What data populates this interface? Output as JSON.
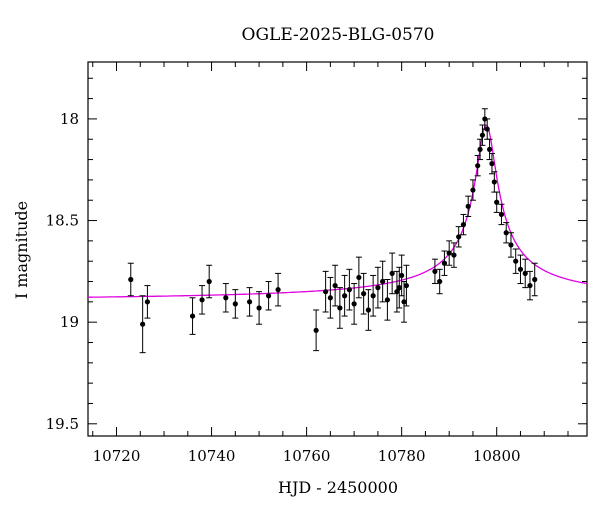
{
  "chart_data": {
    "type": "scatter",
    "title": "OGLE-2025-BLG-0570",
    "xlabel": "HJD - 2450000",
    "ylabel": "I magnitude",
    "xlim": [
      10714,
      10819
    ],
    "ylim": [
      19.56,
      17.72
    ],
    "y_inverted": true,
    "xticks": [
      10720,
      10740,
      10760,
      10780,
      10800
    ],
    "yticks": [
      18,
      18.5,
      19,
      19.5
    ],
    "ytick_labels": [
      "18",
      "18.5",
      "19",
      "19.5"
    ],
    "grid": false,
    "colors": {
      "points": "#000000",
      "model": "#e000e0"
    },
    "series": [
      {
        "type": "errorbar",
        "x": [
          10723,
          10725.5,
          10726.5,
          10736,
          10738,
          10739.5,
          10743,
          10745,
          10748,
          10750,
          10752,
          10754,
          10762,
          10764,
          10765,
          10766,
          10767,
          10768,
          10769,
          10770,
          10771,
          10772,
          10773,
          10774,
          10775,
          10776,
          10777,
          10778,
          10779,
          10779.5,
          10780,
          10780.5,
          10781,
          10787,
          10788,
          10789,
          10790,
          10791,
          10792,
          10793,
          10794,
          10795,
          10796,
          10796.5,
          10797,
          10797.5,
          10798,
          10798.5,
          10799,
          10799.5,
          10800,
          10801,
          10802,
          10803,
          10804,
          10805,
          10806,
          10807,
          10808
        ],
        "y": [
          18.79,
          19.01,
          18.9,
          18.97,
          18.89,
          18.8,
          18.88,
          18.91,
          18.9,
          18.93,
          18.87,
          18.84,
          19.04,
          18.85,
          18.88,
          18.82,
          18.93,
          18.87,
          18.84,
          18.91,
          18.78,
          18.86,
          18.94,
          18.87,
          18.83,
          18.8,
          18.89,
          18.76,
          18.85,
          18.83,
          18.77,
          18.9,
          18.82,
          18.75,
          18.8,
          18.71,
          18.66,
          18.67,
          18.58,
          18.52,
          18.43,
          18.35,
          18.23,
          18.15,
          18.08,
          18.0,
          18.05,
          18.15,
          18.22,
          18.31,
          18.41,
          18.47,
          18.56,
          18.62,
          18.7,
          18.74,
          18.76,
          18.82,
          18.79
        ],
        "err": [
          0.08,
          0.14,
          0.08,
          0.09,
          0.07,
          0.08,
          0.07,
          0.07,
          0.07,
          0.08,
          0.07,
          0.08,
          0.1,
          0.1,
          0.1,
          0.1,
          0.1,
          0.1,
          0.1,
          0.1,
          0.1,
          0.1,
          0.1,
          0.1,
          0.1,
          0.1,
          0.1,
          0.1,
          0.1,
          0.1,
          0.1,
          0.1,
          0.1,
          0.06,
          0.06,
          0.06,
          0.06,
          0.06,
          0.05,
          0.05,
          0.05,
          0.05,
          0.05,
          0.05,
          0.05,
          0.05,
          0.05,
          0.05,
          0.05,
          0.05,
          0.05,
          0.05,
          0.05,
          0.06,
          0.06,
          0.07,
          0.07,
          0.07,
          0.08
        ]
      },
      {
        "type": "model",
        "baseline": 18.9,
        "t0": 10797.8,
        "peak": 18.03,
        "width": 2.2
      }
    ]
  }
}
